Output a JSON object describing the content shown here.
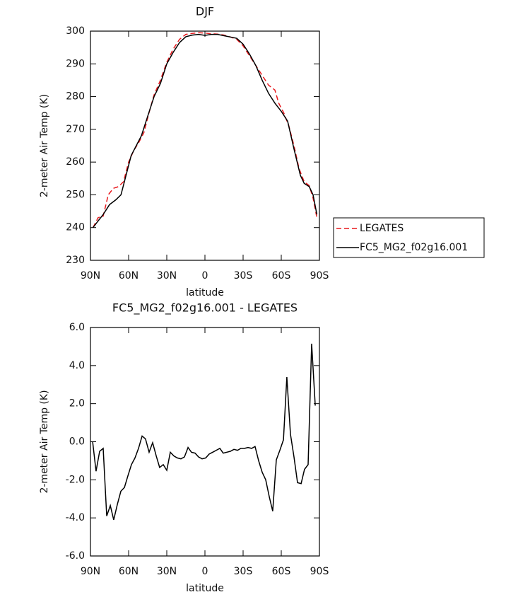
{
  "chart_data": [
    {
      "type": "line",
      "title": "DJF",
      "xlabel": "latitude",
      "ylabel": "2-meter Air Temp (K)",
      "xlim": [
        90,
        -90
      ],
      "xticks": [
        {
          "value": 90,
          "label": "90N"
        },
        {
          "value": 60,
          "label": "60N"
        },
        {
          "value": 30,
          "label": "30N"
        },
        0,
        {
          "value": -30,
          "label": "30S"
        },
        {
          "value": -60,
          "label": "60S"
        },
        {
          "value": -90,
          "label": "90S"
        }
      ],
      "ylim": [
        230,
        300
      ],
      "yticks": [
        230,
        240,
        250,
        260,
        270,
        280,
        290,
        300
      ],
      "legend": "outside-right",
      "series": [
        {
          "name": "LEGATES",
          "color": "#e8191d",
          "linestyle": "dashed",
          "x": [
            88,
            84,
            80,
            76,
            72,
            68,
            64,
            60,
            56,
            52,
            48,
            44,
            40,
            35,
            30,
            25,
            20,
            15,
            10,
            5,
            0,
            -5,
            -10,
            -15,
            -20,
            -25,
            -30,
            -35,
            -40,
            -45,
            -50,
            -55,
            -58,
            -62,
            -66,
            -70,
            -74,
            -78,
            -82,
            -85,
            -88
          ],
          "values": [
            240,
            243,
            243.5,
            250,
            252,
            252.5,
            254,
            260,
            263.5,
            266,
            269,
            275,
            280.5,
            285,
            290.5,
            294.5,
            297.5,
            299,
            299.3,
            299.5,
            299.4,
            299.2,
            299.1,
            298.8,
            298.2,
            297.5,
            295.5,
            292.5,
            289.5,
            286.5,
            283.5,
            282,
            278,
            275,
            271,
            265,
            258,
            254,
            252.8,
            249,
            243
          ]
        },
        {
          "name": "FC5_MG2_f02g16.001",
          "color": "#000000",
          "linestyle": "solid",
          "x": [
            88,
            80,
            75,
            70,
            66,
            62,
            58,
            54,
            50,
            45,
            40,
            35,
            30,
            25,
            20,
            15,
            10,
            5,
            0,
            -5,
            -10,
            -15,
            -20,
            -25,
            -30,
            -35,
            -40,
            -45,
            -50,
            -55,
            -60,
            -65,
            -70,
            -75,
            -78,
            -82,
            -85,
            -88
          ],
          "values": [
            240,
            244,
            247,
            248.5,
            250,
            256,
            262,
            265,
            268,
            274,
            280,
            284,
            290,
            293.5,
            296.5,
            298.3,
            298.8,
            299,
            298.7,
            299,
            299,
            298.6,
            298.2,
            297.8,
            296,
            293,
            289.5,
            285,
            281,
            278,
            275.5,
            272.5,
            264,
            256,
            253.5,
            252.5,
            250,
            244
          ]
        }
      ]
    },
    {
      "type": "line",
      "title": "FC5_MG2_f02g16.001 - LEGATES",
      "xlabel": "latitude",
      "ylabel": "2-meter Air Temp (K)",
      "xlim": [
        90,
        -90
      ],
      "xticks": [
        {
          "value": 90,
          "label": "90N"
        },
        {
          "value": 60,
          "label": "60N"
        },
        {
          "value": 30,
          "label": "30N"
        },
        0,
        {
          "value": -30,
          "label": "30S"
        },
        {
          "value": -60,
          "label": "60S"
        },
        {
          "value": -90,
          "label": "90S"
        }
      ],
      "ylim": [
        -6,
        6
      ],
      "yticks": [
        {
          "value": -6,
          "label": "-6.0"
        },
        {
          "value": -4,
          "label": "-4.0"
        },
        {
          "value": -2,
          "label": "-2.0"
        },
        {
          "value": 0,
          "label": "0.0"
        },
        {
          "value": 2,
          "label": "2.0"
        },
        {
          "value": 4,
          "label": "4.0"
        },
        {
          "value": 6,
          "label": "6.0"
        }
      ],
      "color": "#000000",
      "x": [
        88.3,
        85.6,
        82.8,
        80,
        77.2,
        74.4,
        71.7,
        68.9,
        66.1,
        63.3,
        60.6,
        57.8,
        55,
        52.2,
        49.4,
        46.7,
        43.9,
        41.1,
        38.3,
        35.6,
        32.8,
        30,
        27.2,
        24.4,
        21.7,
        18.9,
        16.1,
        13.3,
        10.6,
        7.8,
        5,
        2.2,
        -0.6,
        -3.3,
        -6.1,
        -8.9,
        -11.7,
        -14.4,
        -17.2,
        -20,
        -22.8,
        -25.6,
        -28.3,
        -31.1,
        -33.9,
        -36.7,
        -39.4,
        -42.2,
        -45,
        -47.8,
        -50.6,
        -53.3,
        -56.1,
        -58.9,
        -61.7,
        -64.4,
        -67.2,
        -70,
        -72.8,
        -75.6,
        -78.3,
        -81.1,
        -83.9,
        -86.7
      ],
      "values": [
        0,
        -1.55,
        -0.5,
        -0.35,
        -3.9,
        -3.35,
        -4.1,
        -3.3,
        -2.6,
        -2.4,
        -1.8,
        -1.2,
        -0.85,
        -0.35,
        0.3,
        0.15,
        -0.55,
        -0.05,
        -0.75,
        -1.35,
        -1.2,
        -1.5,
        -0.55,
        -0.75,
        -0.85,
        -0.9,
        -0.8,
        -0.3,
        -0.55,
        -0.6,
        -0.8,
        -0.9,
        -0.85,
        -0.65,
        -0.55,
        -0.45,
        -0.35,
        -0.6,
        -0.55,
        -0.5,
        -0.4,
        -0.45,
        -0.35,
        -0.35,
        -0.3,
        -0.35,
        -0.25,
        -1,
        -1.6,
        -2,
        -2.9,
        -3.65,
        -0.95,
        -0.45,
        0.1,
        3.4,
        0.4,
        -0.8,
        -2.15,
        -2.2,
        -1.45,
        -1.2,
        5.15,
        1.9
      ]
    }
  ]
}
